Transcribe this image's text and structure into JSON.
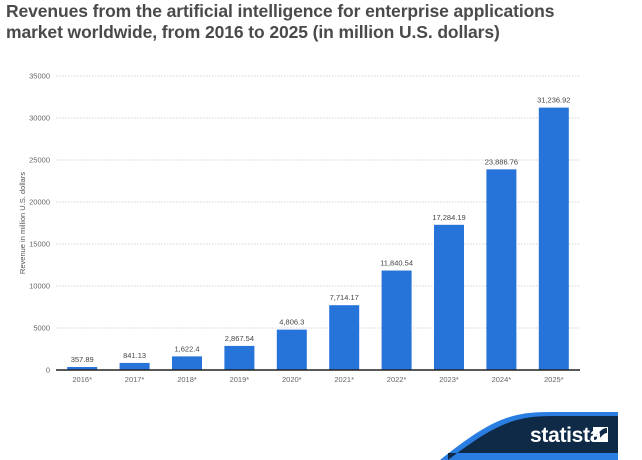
{
  "chart_data": {
    "type": "bar",
    "title": "Revenues from the artificial intelligence for enterprise applications market worldwide, from 2016 to 2025 (in million U.S. dollars)",
    "xlabel": "",
    "ylabel": "Revenue in million U.S. dollars",
    "categories": [
      "2016*",
      "2017*",
      "2018*",
      "2019*",
      "2020*",
      "2021*",
      "2022*",
      "2023*",
      "2024*",
      "2025*"
    ],
    "values": [
      357.89,
      841.13,
      1622.4,
      2867.54,
      4806.3,
      7714.17,
      11840.54,
      17284.19,
      23886.76,
      31236.92
    ],
    "data_labels": [
      "357.89",
      "841.13",
      "1,622.4",
      "2,867.54",
      "4,806.3",
      "7,714.17",
      "11,840.54",
      "17,284.19",
      "23,886.76",
      "31,236.92"
    ],
    "ylim": [
      0,
      35000
    ],
    "yticks": [
      0,
      5000,
      10000,
      15000,
      20000,
      25000,
      30000,
      35000
    ],
    "ytick_labels": [
      "0",
      "5000",
      "10000",
      "15000",
      "20000",
      "25000",
      "30000",
      "35000"
    ],
    "grid": true,
    "bar_color": "#2673d9"
  },
  "header": {
    "title_line1": "Revenues from the artificial intelligence for enterprise applications",
    "title_line2": "market worldwide, from 2016 to 2025 (in million U.S. dollars)"
  },
  "branding": {
    "logo_text": "statista",
    "logo_bg": "#0e2a47",
    "logo_accent": "#2a7de1"
  }
}
